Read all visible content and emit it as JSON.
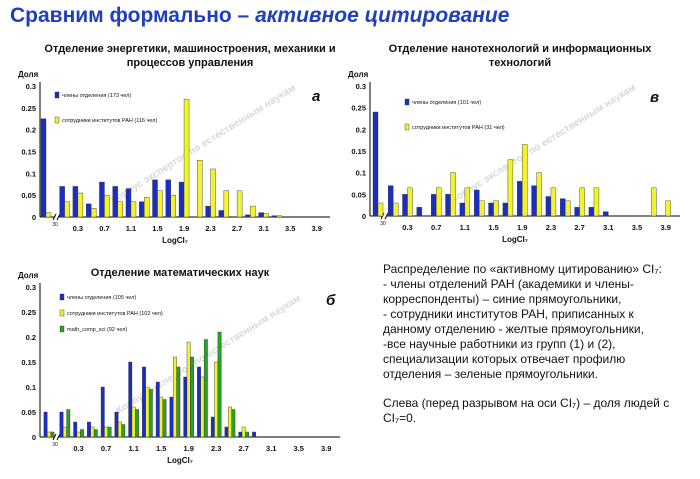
{
  "slide": {
    "title_plain": "Сравним формально – ",
    "title_italic": "активное цитирование"
  },
  "description": {
    "lines": [
      "Распределение по «активному цитированию» CI₇:",
      "- члены отделений РАН (академики и члены-корреспонденты) – синие прямоугольники,",
      "- сотрудники институтов РАН, приписанных к данному отделению - желтые прямоугольники,",
      "-все научные работники из групп (1) и (2), специализации которых отвечает профилю отделения – зеленые прямоугольники."
    ],
    "note": "Слева (перед разрывом на оси CI₇) – доля людей с CI₇=0."
  },
  "colors": {
    "blue": "#1a2fc0",
    "yellow": "#f2f230",
    "green": "#2aa02a"
  },
  "chart_data": [
    {
      "id": "a",
      "type": "bar",
      "panel_letter": "а",
      "title": "Отделение энергетики, машиностроения, механики и процессов управления",
      "ylabel": "Доля",
      "xlabel": "LogCI₇",
      "watermark": "Корпус экспертов по естественным наукам",
      "ylim": [
        0,
        0.3
      ],
      "yticks": [
        "0",
        "0.05",
        "0.1",
        "0.15",
        "0.2",
        "0.25",
        "0.3"
      ],
      "xticks": [
        "0.3",
        "0.7",
        "1.1",
        "1.5",
        "1.9",
        "2.3",
        "2.7",
        "3.1",
        "3.5",
        "3.9"
      ],
      "zero_label": "30",
      "zero": [
        0.225,
        0.01
      ],
      "x": [
        0.1,
        0.3,
        0.5,
        0.7,
        0.9,
        1.1,
        1.3,
        1.5,
        1.7,
        1.9,
        2.1,
        2.3,
        2.5,
        2.7,
        2.9,
        3.1,
        3.3
      ],
      "series": [
        {
          "name": "члены отделения (173 чел)",
          "color": "blue",
          "values": [
            0.07,
            0.07,
            0.03,
            0.08,
            0.07,
            0.065,
            0.035,
            0.085,
            0.085,
            0.08,
            0.0,
            0.025,
            0.015,
            0.0,
            0.005,
            0.01,
            0.003
          ]
        },
        {
          "name": "сотрудники институтов РАН (116 чел)",
          "color": "yellow",
          "values": [
            0.035,
            0.055,
            0.02,
            0.05,
            0.035,
            0.035,
            0.045,
            0.06,
            0.05,
            0.27,
            0.13,
            0.11,
            0.06,
            0.06,
            0.025,
            0.008,
            0.003
          ]
        }
      ]
    },
    {
      "id": "v",
      "type": "bar",
      "panel_letter": "в",
      "title": "Отделение нанотехнологий и информационных технологий",
      "ylabel": "Доля",
      "xlabel": "LogCI₇",
      "watermark": "Корпус экспертов по естественным наукам",
      "ylim": [
        0,
        0.3
      ],
      "yticks": [
        "0",
        "0.05",
        "0.1",
        "0.15",
        "0.2",
        "0.25",
        "0.3"
      ],
      "xticks": [
        "0.3",
        "0.7",
        "1.1",
        "1.5",
        "1.9",
        "2.3",
        "2.7",
        "3.1",
        "3.5",
        "3.9"
      ],
      "zero_label": "30",
      "zero": [
        0.24,
        0.03
      ],
      "x": [
        0.1,
        0.3,
        0.5,
        0.7,
        0.9,
        1.1,
        1.3,
        1.5,
        1.7,
        1.9,
        2.1,
        2.3,
        2.5,
        2.7,
        2.9,
        3.1,
        3.3,
        3.5,
        3.7,
        3.9
      ],
      "series": [
        {
          "name": "члены отделения (101 чел)",
          "color": "blue",
          "values": [
            0.07,
            0.05,
            0.02,
            0.05,
            0.05,
            0.03,
            0.06,
            0.03,
            0.03,
            0.08,
            0.07,
            0.045,
            0.04,
            0.02,
            0.02,
            0.01,
            0.0,
            0.0,
            0.0,
            0.0
          ]
        },
        {
          "name": "сотрудники институтов РАН (31 чел)",
          "color": "yellow",
          "values": [
            0.03,
            0.065,
            0.0,
            0.065,
            0.1,
            0.065,
            0.035,
            0.035,
            0.13,
            0.165,
            0.1,
            0.065,
            0.035,
            0.065,
            0.065,
            0.0,
            0.0,
            0.0,
            0.065,
            0.035
          ]
        }
      ]
    },
    {
      "id": "b",
      "type": "bar",
      "panel_letter": "б",
      "title": "Отделение математических наук",
      "ylabel": "Доля",
      "xlabel": "LogCI₇",
      "watermark": "Корпус экспертов по естественным наукам",
      "ylim": [
        0,
        0.3
      ],
      "yticks": [
        "0",
        "0.05",
        "0.1",
        "0.15",
        "0.2",
        "0.25",
        "0.3"
      ],
      "xticks": [
        "0.3",
        "0.7",
        "1.1",
        "1.5",
        "1.9",
        "2.3",
        "2.7",
        "3.1",
        "3.5",
        "3.9"
      ],
      "zero_label": "30",
      "zero": [
        0.05,
        0.01,
        0.01
      ],
      "x": [
        0.1,
        0.3,
        0.5,
        0.7,
        0.9,
        1.1,
        1.3,
        1.5,
        1.7,
        1.9,
        2.1,
        2.3,
        2.5,
        2.7,
        2.9
      ],
      "series": [
        {
          "name": "члены отделения (105 чел)",
          "color": "blue",
          "values": [
            0.05,
            0.03,
            0.03,
            0.1,
            0.05,
            0.15,
            0.14,
            0.11,
            0.08,
            0.12,
            0.14,
            0.04,
            0.02,
            0.01,
            0.01
          ]
        },
        {
          "name": "сотрудники институтов РАН (102 чел)",
          "color": "yellow",
          "values": [
            0.02,
            0.01,
            0.02,
            0.02,
            0.03,
            0.06,
            0.1,
            0.08,
            0.16,
            0.19,
            0.12,
            0.15,
            0.06,
            0.02,
            0.0
          ]
        },
        {
          "name": "math_comp_sci (92 чел)",
          "color": "green",
          "values": [
            0.055,
            0.015,
            0.015,
            0.02,
            0.025,
            0.055,
            0.095,
            0.075,
            0.14,
            0.16,
            0.195,
            0.21,
            0.055,
            0.01,
            0.0
          ]
        }
      ]
    }
  ]
}
